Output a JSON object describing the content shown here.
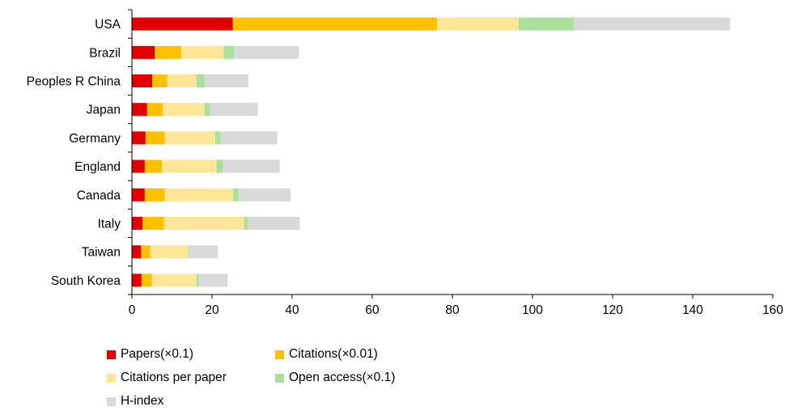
{
  "chart_data": {
    "type": "bar",
    "orientation": "horizontal",
    "stacked": true,
    "categories": [
      "USA",
      "Brazil",
      "Peoples R China",
      "Japan",
      "Germany",
      "England",
      "Canada",
      "Italy",
      "Taiwan",
      "South Korea"
    ],
    "series": [
      {
        "name": "Papers(×0.1)",
        "color": "#e00000",
        "values": [
          25.2,
          5.7,
          5.1,
          3.8,
          3.4,
          3.2,
          3.2,
          2.7,
          2.3,
          2.4
        ]
      },
      {
        "name": "Citations(×0.01)",
        "color": "#ffc000",
        "values": [
          51.0,
          6.6,
          3.7,
          3.9,
          4.8,
          4.3,
          5.0,
          5.3,
          2.3,
          2.6
        ]
      },
      {
        "name": "Citations per paper",
        "color": "#ffe699",
        "values": [
          20.3,
          10.6,
          7.3,
          10.4,
          12.6,
          13.6,
          17.1,
          20.0,
          9.4,
          11.1
        ]
      },
      {
        "name": "Open access(×0.1)",
        "color": "#a9e09a",
        "values": [
          13.8,
          2.6,
          2.0,
          1.3,
          1.3,
          1.6,
          1.3,
          0.9,
          0.2,
          0.6
        ]
      },
      {
        "name": "H-index",
        "color": "#d9d9d9",
        "values": [
          39.0,
          16.2,
          11.0,
          12.0,
          14.2,
          14.2,
          13.0,
          13.0,
          7.2,
          7.2
        ]
      }
    ],
    "xlim": [
      0,
      160
    ],
    "xticks": [
      0,
      20,
      40,
      60,
      80,
      100,
      120,
      140,
      160
    ],
    "grid": false,
    "legend_position": "bottom-left"
  }
}
